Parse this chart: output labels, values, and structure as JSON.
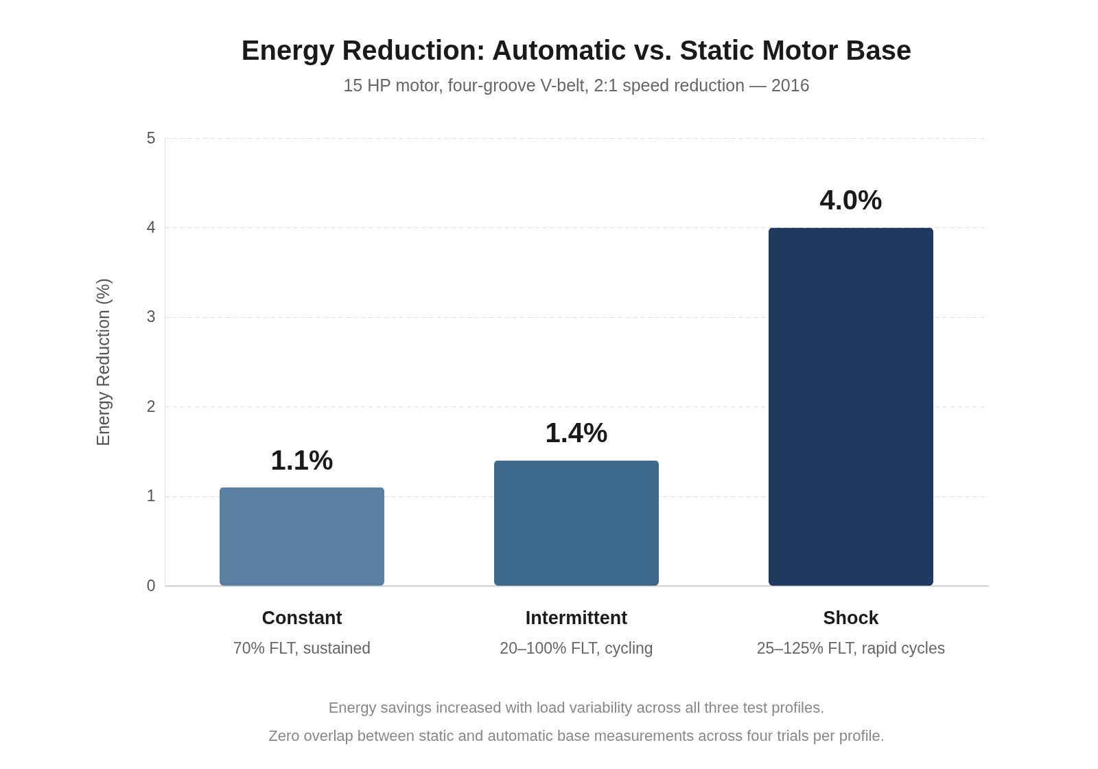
{
  "chart_data": {
    "type": "bar",
    "title": "Energy Reduction: Automatic vs. Static Motor Base",
    "subtitle": "15 HP motor, four-groove V-belt, 2:1 speed reduction — 2016",
    "ylabel": "Energy Reduction (%)",
    "categories": [
      "Constant",
      "Intermittent",
      "Shock"
    ],
    "values": [
      1.1,
      1.4,
      4.0
    ],
    "colors": [
      "#5b7fa0",
      "#3d6a8c",
      "#1f3a5f"
    ],
    "value_labels": [
      "1.1%",
      "1.4%",
      "4.0%"
    ],
    "ylim": [
      0,
      5
    ],
    "yticks": [
      0,
      1,
      2,
      3,
      4,
      5
    ],
    "grid": "y",
    "annotations": [
      "70% FLT, sustained",
      "20–100% FLT, cycling",
      "25–125% FLT, rapid cycles",
      "Energy savings increased with load variability across all three test profiles.",
      "Zero overlap between static and automatic base measurements across four trials per profile."
    ]
  }
}
